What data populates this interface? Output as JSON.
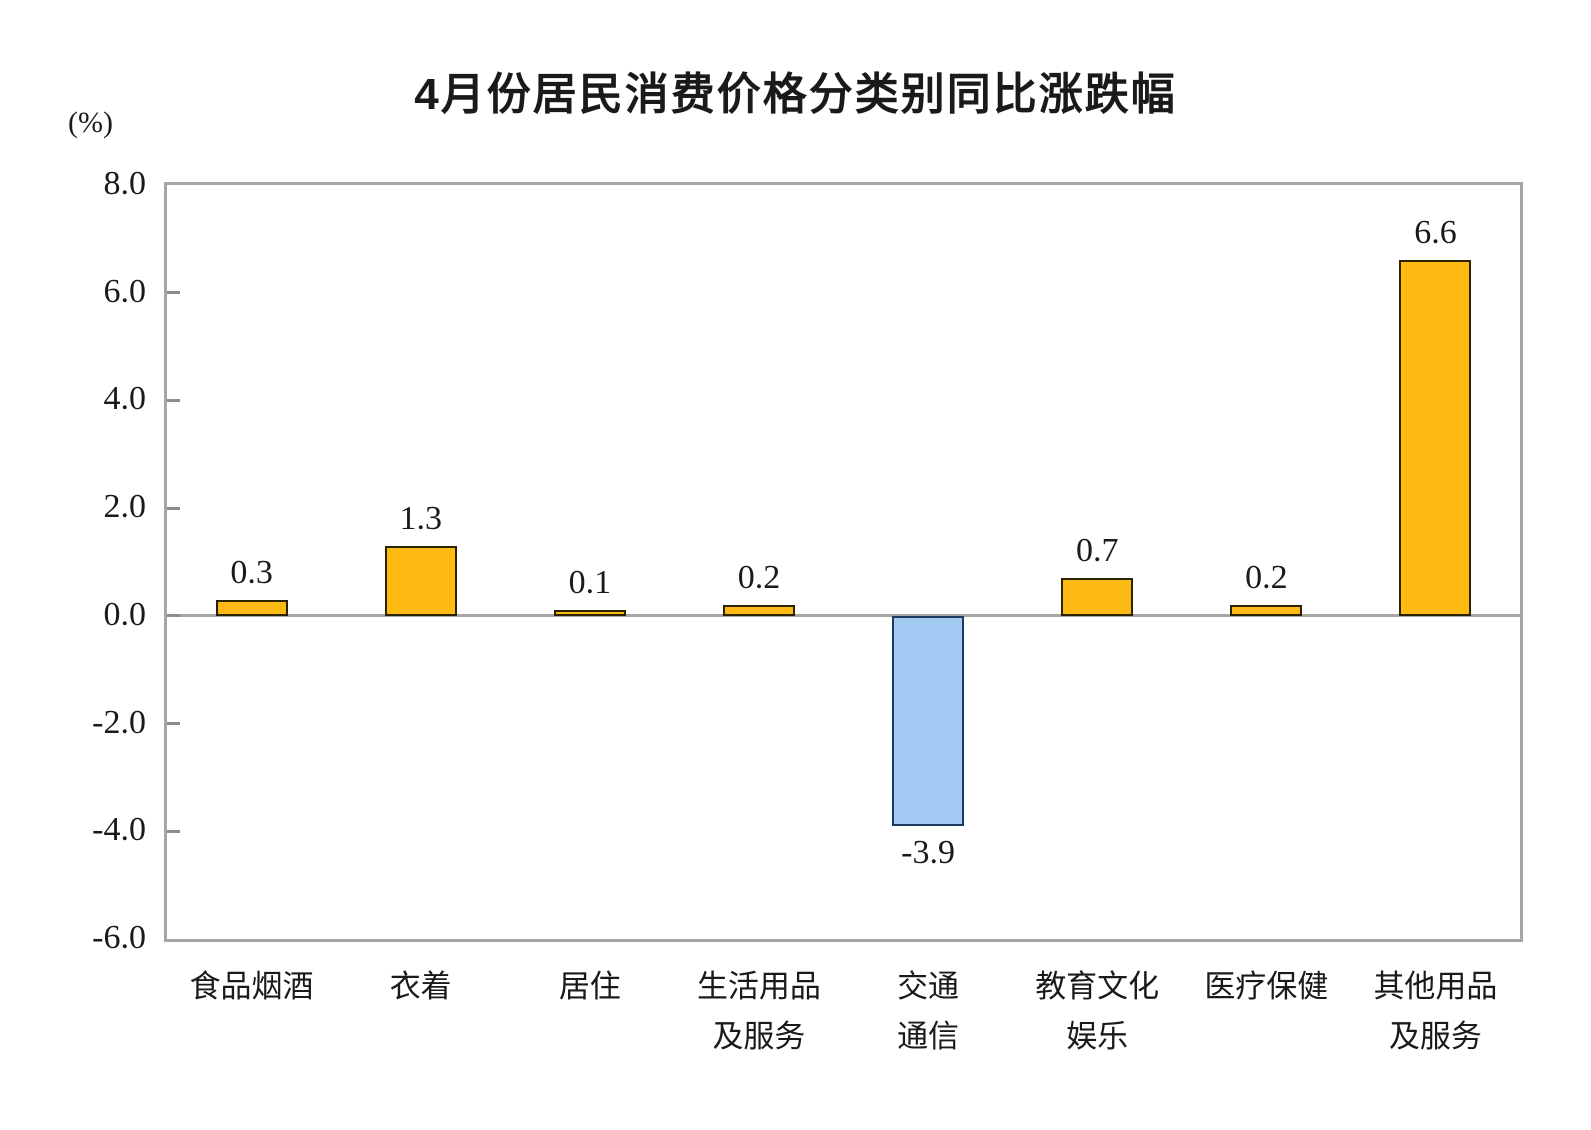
{
  "title": "4月份居民消费价格分类别同比涨跌幅",
  "y_unit_label": "(%)",
  "chart_data": {
    "type": "bar",
    "title": "4月份居民消费价格分类别同比涨跌幅",
    "xlabel": "",
    "ylabel": "(%)",
    "categories": [
      "食品烟酒",
      "衣着",
      "居住",
      "生活用品及服务",
      "交通通信",
      "教育文化娱乐",
      "医疗保健",
      "其他用品及服务"
    ],
    "category_label_lines": [
      [
        "食品烟酒"
      ],
      [
        "衣着"
      ],
      [
        "居住"
      ],
      [
        "生活用品",
        "及服务"
      ],
      [
        "交通",
        "通信"
      ],
      [
        "教育文化",
        "娱乐"
      ],
      [
        "医疗保健"
      ],
      [
        "其他用品",
        "及服务"
      ]
    ],
    "values": [
      0.3,
      1.3,
      0.1,
      0.2,
      -3.9,
      0.7,
      0.2,
      6.6
    ],
    "data_labels": [
      "0.3",
      "1.3",
      "0.1",
      "0.2",
      "-3.9",
      "0.7",
      "0.2",
      "6.6"
    ],
    "ylim": [
      -6.0,
      8.0
    ],
    "ytick_interval": 2.0,
    "ytick_labels": [
      "8.0",
      "6.0",
      "4.0",
      "2.0",
      "0.0",
      "-2.0",
      "-4.0",
      "-6.0"
    ],
    "ytick_values": [
      8.0,
      6.0,
      4.0,
      2.0,
      0.0,
      -2.0,
      -4.0,
      -6.0
    ],
    "grid": false,
    "legend": "none",
    "colors": {
      "positive_bar_fill": "#fcba12",
      "positive_bar_border": "#2b2200",
      "negative_bar_fill": "#a3caf2",
      "negative_bar_border": "#1c3a5e",
      "axis_frame": "#a6a6a6",
      "zero_line": "#a6a6a6",
      "tick": "#8c8c8c",
      "text": "#1a1a1a"
    },
    "bar_fill_colors": [
      "#fcba12",
      "#fcba12",
      "#fcba12",
      "#fcba12",
      "#a3caf2",
      "#fcba12",
      "#fcba12",
      "#fcba12"
    ],
    "bar_border_colors": [
      "#2b2200",
      "#2b2200",
      "#2b2200",
      "#2b2200",
      "#1c3a5e",
      "#2b2200",
      "#2b2200",
      "#2b2200"
    ]
  }
}
